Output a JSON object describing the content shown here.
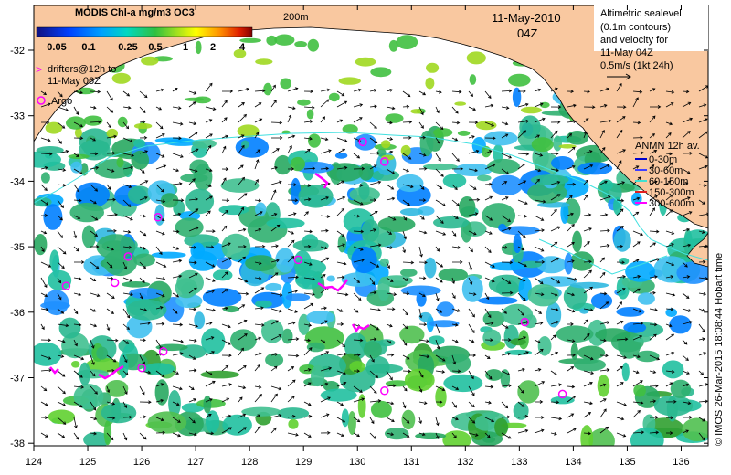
{
  "map": {
    "colorbar": {
      "title": "MODIS Chl-a mg/m3 OC3",
      "ticks": [
        "0.05",
        "0.1",
        "0.25",
        "0.5",
        "1",
        "2",
        "4"
      ],
      "colors": [
        "#1a1aa0",
        "#0044ff",
        "#00a0ff",
        "#00d0c0",
        "#20c040",
        "#80d020",
        "#e0e000",
        "#ff9000",
        "#e02000",
        "#a00000"
      ]
    },
    "bathy_label": "200m",
    "date": "11-May-2010",
    "time": "04Z",
    "legend_altimetric": [
      "Altimetric sealevel",
      "(0.1m contours)",
      "and velocity for",
      "11-May 04Z",
      "0.5m/s (1kt 24h)"
    ],
    "legend_drifters": [
      "drifters@12h to",
      "11-May 06Z"
    ],
    "legend_drifter_symbol": ">",
    "legend_argo": "Argo",
    "anmn": {
      "title": "ANMN 12h av.",
      "items": [
        {
          "label": "0-30m",
          "color": "#0000cc"
        },
        {
          "label": "30-60m",
          "color": "#4040ff"
        },
        {
          "label": "60-150m",
          "color": "#40e0d0"
        },
        {
          "label": "150-300m",
          "color": "#e02020"
        },
        {
          "label": "300-600m",
          "color": "#ff00ff"
        }
      ]
    },
    "credit": "© IMOS 26-Mar-2015 18:08:44 Hobart time",
    "lon_ticks": [
      "124",
      "125",
      "126",
      "127",
      "128",
      "129",
      "130",
      "131",
      "132",
      "133",
      "134",
      "135",
      "136"
    ],
    "lat_ticks": [
      "-32",
      "-33",
      "-34",
      "-35",
      "-36",
      "-37",
      "-38"
    ],
    "argo_floats": [
      {
        "lon": 126.3,
        "lat": -34.55
      },
      {
        "lon": 125.75,
        "lat": -35.15
      },
      {
        "lon": 128.9,
        "lat": -35.2
      },
      {
        "lon": 124.6,
        "lat": -35.6
      },
      {
        "lon": 125.5,
        "lat": -35.55
      },
      {
        "lon": 130.1,
        "lat": -33.4
      },
      {
        "lon": 130.5,
        "lat": -33.7
      },
      {
        "lon": 133.1,
        "lat": -36.15
      },
      {
        "lon": 126.4,
        "lat": -36.6
      },
      {
        "lon": 126.0,
        "lat": -36.85
      },
      {
        "lon": 130.5,
        "lat": -37.2
      },
      {
        "lon": 133.8,
        "lat": -37.25
      }
    ],
    "land_color": "#f9c8a0",
    "contour_color": "#40e0e0"
  }
}
